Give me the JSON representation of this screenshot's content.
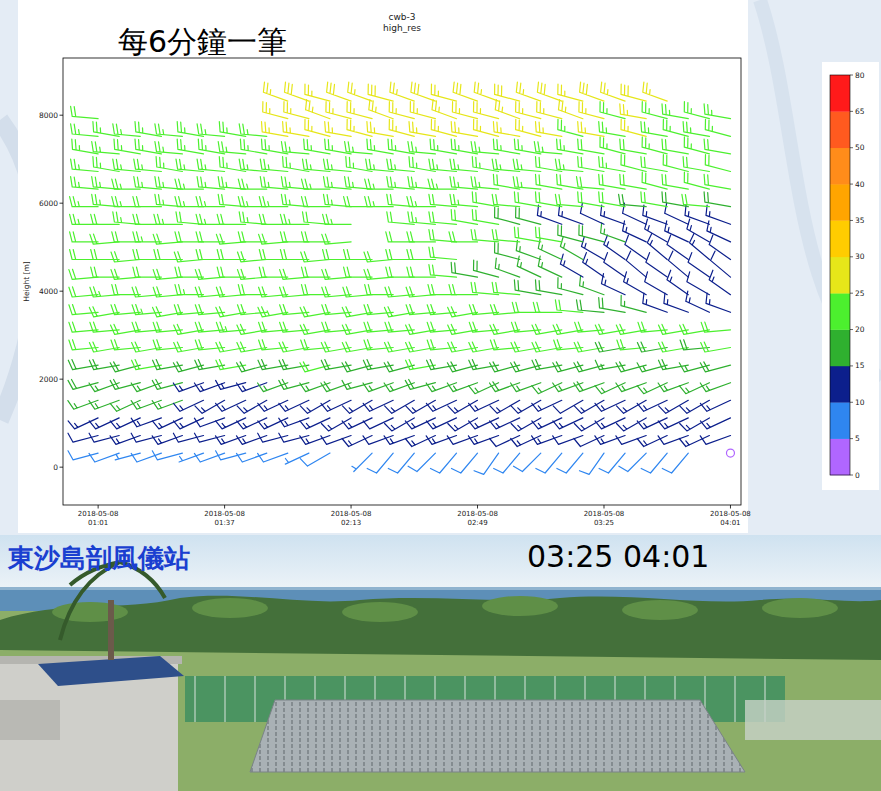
{
  "chart_data": {
    "type": "barbs",
    "title": "cwb-3",
    "subtitle": "high_res",
    "y_label": "Height [m]",
    "annotation": "每6分鐘一筆",
    "x": [
      "2018-05-08 01:01",
      "2018-05-08 01:07",
      "2018-05-08 01:13",
      "2018-05-08 01:19",
      "2018-05-08 01:25",
      "2018-05-08 01:31",
      "2018-05-08 01:37",
      "2018-05-08 01:43",
      "2018-05-08 01:49",
      "2018-05-08 01:55",
      "2018-05-08 02:01",
      "2018-05-08 02:07",
      "2018-05-08 02:13",
      "2018-05-08 02:19",
      "2018-05-08 02:25",
      "2018-05-08 02:31",
      "2018-05-08 02:37",
      "2018-05-08 02:43",
      "2018-05-08 02:49",
      "2018-05-08 02:55",
      "2018-05-08 03:01",
      "2018-05-08 03:07",
      "2018-05-08 03:13",
      "2018-05-08 03:19",
      "2018-05-08 03:25",
      "2018-05-08 03:31",
      "2018-05-08 03:37",
      "2018-05-08 03:43",
      "2018-05-08 03:49",
      "2018-05-08 03:55",
      "2018-05-08 04:01"
    ],
    "heights": [
      320,
      720,
      1120,
      1520,
      1920,
      2320,
      2720,
      3120,
      3520,
      3920,
      4320,
      4720,
      5120,
      5520,
      5920,
      6320,
      6720,
      7120,
      7520,
      7920,
      8320
    ],
    "speed": [
      [
        8,
        8,
        7,
        8,
        8,
        7,
        8,
        9,
        8,
        8,
        7,
        8,
        null,
        7,
        8,
        8,
        9,
        8,
        8,
        9,
        8,
        8,
        9,
        8,
        8,
        9,
        8,
        8,
        9,
        null,
        2
      ],
      [
        12,
        12,
        13,
        12,
        13,
        12,
        12,
        13,
        13,
        12,
        12,
        13,
        12,
        13,
        12,
        13,
        14,
        13,
        12,
        13,
        12,
        13,
        13,
        12,
        12,
        13,
        12,
        13,
        12,
        13,
        12
      ],
      [
        14,
        13,
        14,
        14,
        13,
        14,
        12,
        13,
        14,
        13,
        14,
        13,
        14,
        13,
        12,
        13,
        14,
        13,
        14,
        13,
        13,
        14,
        13,
        14,
        13,
        14,
        14,
        13,
        14,
        13,
        14
      ],
      [
        17,
        16,
        17,
        16,
        17,
        14,
        13,
        14,
        13,
        14,
        13,
        14,
        13,
        14,
        13,
        14,
        14,
        13,
        14,
        13,
        14,
        14,
        13,
        12,
        13,
        14,
        13,
        14,
        13,
        14,
        13
      ],
      [
        18,
        17,
        18,
        17,
        18,
        14,
        13,
        14,
        14,
        17,
        18,
        17,
        18,
        17,
        16,
        17,
        18,
        17,
        16,
        17,
        18,
        17,
        16,
        17,
        18,
        17,
        16,
        16,
        17,
        16,
        17
      ],
      [
        19,
        18,
        19,
        20,
        19,
        18,
        19,
        20,
        19,
        18,
        19,
        20,
        19,
        18,
        19,
        19,
        20,
        19,
        18,
        19,
        18,
        19,
        18,
        19,
        18,
        17,
        18,
        17,
        18,
        17,
        18
      ],
      [
        21,
        20,
        21,
        22,
        21,
        20,
        21,
        22,
        21,
        20,
        21,
        21,
        22,
        21,
        20,
        21,
        22,
        21,
        20,
        21,
        20,
        21,
        20,
        21,
        20,
        19,
        20,
        19,
        20,
        19,
        20
      ],
      [
        22,
        21,
        22,
        21,
        22,
        21,
        22,
        23,
        22,
        21,
        22,
        21,
        22,
        21,
        22,
        21,
        22,
        21,
        22,
        21,
        22,
        21,
        22,
        21,
        20,
        21,
        20,
        21,
        20,
        21,
        20
      ],
      [
        22,
        21,
        22,
        23,
        22,
        21,
        22,
        21,
        22,
        23,
        22,
        21,
        22,
        21,
        22,
        21,
        22,
        21,
        22,
        21,
        21,
        20,
        21,
        20,
        19,
        18,
        17,
        14,
        13,
        14,
        13
      ],
      [
        22,
        23,
        22,
        21,
        22,
        23,
        22,
        21,
        22,
        21,
        22,
        21,
        22,
        21,
        22,
        21,
        22,
        21,
        20,
        21,
        20,
        19,
        18,
        17,
        16,
        14,
        13,
        12,
        13,
        12,
        13
      ],
      [
        21,
        22,
        21,
        22,
        21,
        22,
        21,
        22,
        21,
        22,
        21,
        22,
        21,
        22,
        21,
        22,
        21,
        20,
        19,
        18,
        17,
        16,
        15,
        14,
        13,
        12,
        11,
        12,
        11,
        12,
        11
      ],
      [
        21,
        22,
        21,
        22,
        21,
        22,
        21,
        22,
        21,
        22,
        21,
        22,
        21,
        22,
        21,
        22,
        21,
        21,
        null,
        null,
        18,
        17,
        16,
        15,
        14,
        13,
        12,
        13,
        12,
        13,
        12
      ],
      [
        22,
        21,
        22,
        23,
        22,
        21,
        22,
        21,
        22,
        21,
        22,
        21,
        22,
        null,
        null,
        21,
        22,
        21,
        22,
        21,
        20,
        21,
        20,
        19,
        18,
        17,
        14,
        13,
        14,
        13,
        14
      ],
      [
        23,
        22,
        23,
        22,
        23,
        22,
        23,
        22,
        23,
        22,
        23,
        22,
        23,
        null,
        null,
        22,
        23,
        22,
        21,
        20,
        19,
        18,
        14,
        13,
        12,
        13,
        12,
        13,
        12,
        13,
        14
      ],
      [
        23,
        24,
        23,
        22,
        23,
        24,
        23,
        22,
        23,
        24,
        23,
        22,
        23,
        22,
        23,
        22,
        23,
        22,
        23,
        22,
        21,
        22,
        21,
        20,
        21,
        20,
        19,
        20,
        19,
        20,
        19
      ],
      [
        24,
        23,
        24,
        23,
        24,
        23,
        24,
        23,
        24,
        23,
        24,
        23,
        24,
        23,
        24,
        23,
        24,
        23,
        24,
        23,
        22,
        23,
        22,
        21,
        22,
        21,
        20,
        21,
        20,
        21,
        20
      ],
      [
        24,
        24,
        23,
        24,
        24,
        23,
        24,
        24,
        23,
        24,
        24,
        23,
        24,
        24,
        23,
        24,
        24,
        23,
        24,
        23,
        24,
        23,
        22,
        23,
        22,
        23,
        22,
        21,
        22,
        21,
        22
      ],
      [
        23,
        24,
        24,
        23,
        24,
        24,
        23,
        24,
        24,
        23,
        24,
        24,
        23,
        24,
        24,
        23,
        24,
        24,
        23,
        24,
        24,
        23,
        24,
        23,
        22,
        23,
        22,
        23,
        22,
        23,
        22
      ],
      [
        24,
        23,
        24,
        24,
        23,
        24,
        24,
        23,
        24,
        25,
        25,
        26,
        25,
        26,
        25,
        26,
        25,
        26,
        25,
        26,
        25,
        26,
        25,
        24,
        25,
        24,
        25,
        24,
        23,
        24,
        23
      ],
      [
        22,
        null,
        null,
        null,
        null,
        null,
        null,
        null,
        null,
        26,
        27,
        26,
        27,
        26,
        27,
        26,
        27,
        26,
        27,
        26,
        27,
        26,
        27,
        26,
        25,
        24,
        25,
        24,
        24,
        23,
        24
      ],
      [
        null,
        null,
        null,
        null,
        null,
        null,
        null,
        null,
        null,
        27,
        28,
        27,
        28,
        27,
        28,
        27,
        28,
        27,
        28,
        27,
        28,
        27,
        28,
        27,
        28,
        27,
        28,
        26,
        null,
        null,
        null
      ]
    ],
    "direction": [
      [
        255,
        250,
        255,
        250,
        255,
        250,
        250,
        255,
        250,
        250,
        245,
        240,
        null,
        225,
        220,
        220,
        225,
        220,
        220,
        215,
        220,
        225,
        220,
        220,
        215,
        220,
        225,
        220,
        220,
        null,
        210
      ],
      [
        255,
        255,
        250,
        255,
        250,
        255,
        255,
        250,
        250,
        255,
        255,
        250,
        250,
        245,
        250,
        250,
        245,
        250,
        250,
        250,
        245,
        245,
        250,
        250,
        245,
        250,
        250,
        245,
        250,
        245,
        250
      ],
      [
        245,
        245,
        245,
        250,
        245,
        245,
        250,
        245,
        245,
        245,
        250,
        245,
        240,
        245,
        245,
        240,
        245,
        245,
        240,
        245,
        245,
        240,
        245,
        245,
        240,
        245,
        240,
        245,
        245,
        240,
        245
      ],
      [
        250,
        250,
        245,
        250,
        250,
        245,
        240,
        245,
        240,
        245,
        245,
        240,
        245,
        240,
        245,
        240,
        240,
        245,
        240,
        245,
        240,
        240,
        245,
        240,
        240,
        245,
        240,
        245,
        240,
        240,
        245
      ],
      [
        255,
        250,
        255,
        250,
        255,
        250,
        250,
        255,
        250,
        250,
        255,
        250,
        250,
        255,
        250,
        250,
        255,
        250,
        250,
        245,
        250,
        250,
        245,
        250,
        250,
        245,
        250,
        245,
        250,
        245,
        250
      ],
      [
        260,
        260,
        255,
        260,
        260,
        255,
        260,
        260,
        255,
        260,
        260,
        255,
        260,
        255,
        260,
        255,
        260,
        260,
        255,
        260,
        255,
        255,
        260,
        255,
        255,
        260,
        255,
        255,
        260,
        255,
        255
      ],
      [
        265,
        260,
        265,
        260,
        265,
        260,
        265,
        260,
        260,
        265,
        260,
        265,
        260,
        260,
        265,
        260,
        260,
        265,
        260,
        260,
        265,
        260,
        260,
        265,
        260,
        260,
        265,
        260,
        260,
        265,
        260
      ],
      [
        265,
        265,
        260,
        265,
        265,
        260,
        265,
        265,
        260,
        265,
        265,
        260,
        265,
        260,
        265,
        265,
        260,
        265,
        260,
        265,
        260,
        265,
        260,
        260,
        265,
        260,
        260,
        265,
        260,
        260,
        265
      ],
      [
        265,
        260,
        265,
        265,
        260,
        265,
        265,
        260,
        265,
        260,
        265,
        260,
        265,
        260,
        265,
        260,
        265,
        265,
        260,
        265,
        265,
        270,
        270,
        275,
        275,
        280,
        285,
        290,
        290,
        295,
        290
      ],
      [
        265,
        265,
        270,
        265,
        265,
        270,
        265,
        265,
        270,
        265,
        265,
        270,
        265,
        265,
        270,
        265,
        265,
        270,
        270,
        275,
        275,
        280,
        280,
        285,
        290,
        295,
        300,
        300,
        305,
        300,
        305
      ],
      [
        265,
        270,
        265,
        270,
        265,
        270,
        265,
        270,
        265,
        270,
        265,
        270,
        265,
        270,
        265,
        270,
        270,
        275,
        280,
        285,
        290,
        295,
        295,
        300,
        305,
        305,
        310,
        305,
        310,
        305,
        310
      ],
      [
        270,
        270,
        265,
        270,
        270,
        265,
        270,
        270,
        265,
        270,
        270,
        265,
        270,
        270,
        265,
        270,
        270,
        275,
        null,
        null,
        285,
        290,
        295,
        300,
        300,
        305,
        305,
        310,
        305,
        310,
        305
      ],
      [
        270,
        265,
        270,
        270,
        265,
        270,
        270,
        265,
        270,
        265,
        270,
        270,
        265,
        null,
        null,
        270,
        270,
        275,
        270,
        275,
        275,
        280,
        280,
        285,
        285,
        290,
        295,
        300,
        295,
        300,
        295
      ],
      [
        270,
        270,
        275,
        270,
        270,
        275,
        270,
        270,
        275,
        270,
        270,
        275,
        270,
        null,
        null,
        275,
        275,
        275,
        280,
        280,
        285,
        285,
        290,
        290,
        295,
        290,
        295,
        290,
        295,
        290,
        290
      ],
      [
        270,
        275,
        270,
        270,
        275,
        270,
        270,
        275,
        270,
        270,
        275,
        270,
        275,
        270,
        270,
        275,
        270,
        275,
        275,
        280,
        275,
        280,
        280,
        275,
        280,
        280,
        275,
        280,
        280,
        275,
        280
      ],
      [
        275,
        275,
        270,
        275,
        275,
        270,
        275,
        275,
        270,
        275,
        275,
        270,
        275,
        275,
        270,
        275,
        275,
        270,
        275,
        275,
        280,
        275,
        280,
        280,
        275,
        280,
        280,
        285,
        280,
        285,
        280
      ],
      [
        275,
        280,
        275,
        275,
        280,
        275,
        275,
        280,
        275,
        275,
        280,
        275,
        275,
        280,
        275,
        275,
        280,
        275,
        275,
        280,
        275,
        275,
        280,
        275,
        280,
        280,
        285,
        280,
        285,
        280,
        285
      ],
      [
        280,
        275,
        280,
        280,
        275,
        280,
        280,
        275,
        280,
        280,
        275,
        280,
        280,
        275,
        280,
        280,
        275,
        280,
        280,
        275,
        280,
        280,
        275,
        280,
        280,
        285,
        280,
        285,
        280,
        285,
        280
      ],
      [
        275,
        280,
        275,
        280,
        275,
        280,
        275,
        280,
        275,
        280,
        280,
        285,
        280,
        285,
        280,
        285,
        280,
        285,
        280,
        285,
        280,
        285,
        280,
        285,
        280,
        280,
        285,
        280,
        285,
        280,
        285
      ],
      [
        275,
        null,
        null,
        null,
        null,
        null,
        null,
        null,
        null,
        285,
        285,
        290,
        285,
        285,
        290,
        285,
        285,
        290,
        285,
        285,
        290,
        285,
        285,
        290,
        285,
        285,
        280,
        285,
        280,
        285,
        280
      ],
      [
        null,
        null,
        null,
        null,
        null,
        null,
        null,
        null,
        null,
        290,
        290,
        285,
        290,
        290,
        285,
        290,
        290,
        285,
        290,
        290,
        285,
        290,
        290,
        285,
        290,
        290,
        285,
        290,
        null,
        null,
        null
      ]
    ],
    "xlim": [
      "2018-05-08 00:51",
      "2018-05-08 04:04"
    ],
    "ylim": [
      -860,
      9300
    ],
    "xticks": [
      "2018-05-08 01:01",
      "2018-05-08 01:37",
      "2018-05-08 02:13",
      "2018-05-08 02:49",
      "2018-05-08 03:25",
      "2018-05-08 04:01"
    ],
    "yticks": [
      0,
      2000,
      4000,
      6000,
      8000
    ],
    "colorbar": {
      "bounds": [
        0,
        5,
        10,
        15,
        20,
        25,
        30,
        35,
        40,
        50,
        65,
        80
      ],
      "colors": [
        "#b066ff",
        "#2f86f0",
        "#0c1f8c",
        "#2fb02f",
        "#4cf02e",
        "#e6e619",
        "#ffcc00",
        "#ffa500",
        "#ff8c1a",
        "#ff5a1f",
        "#ff1a1a"
      ],
      "ticks": [
        0,
        5,
        10,
        15,
        20,
        25,
        30,
        35,
        40,
        50,
        65,
        80
      ]
    }
  },
  "photo": {
    "caption": "東沙島剖風儀站",
    "times": "03:25 04:01"
  }
}
